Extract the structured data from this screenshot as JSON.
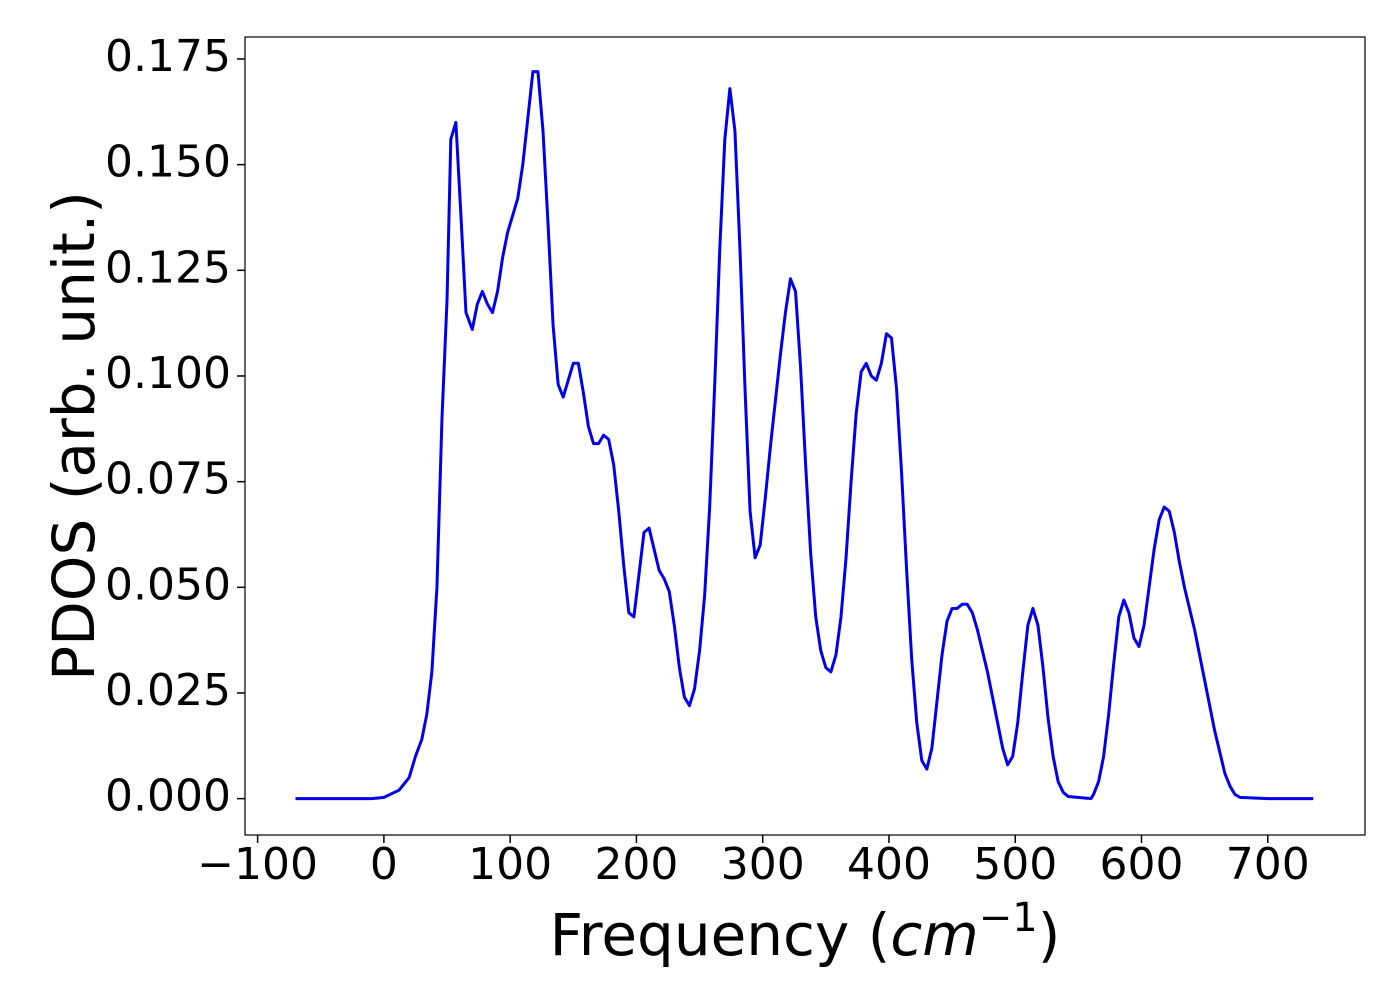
{
  "chart_data": {
    "type": "line",
    "xlabel": {
      "text": "Frequency (",
      "unit": "cm",
      "exponent": "−1",
      "close": ")"
    },
    "ylabel": "PDOS (arb. unit.)",
    "xlim": [
      -110,
      777
    ],
    "ylim": [
      -0.0086,
      0.1802
    ],
    "xticks": [
      {
        "value": -100,
        "label": "−100"
      },
      0,
      100,
      200,
      300,
      400,
      500,
      600,
      700
    ],
    "yticks": [
      {
        "value": 0,
        "label": "0.000"
      },
      0.025,
      {
        "value": 0.05,
        "label": "0.050"
      },
      0.075,
      {
        "value": 0.1,
        "label": "0.100"
      },
      0.125,
      {
        "value": 0.15,
        "label": "0.150"
      },
      0.175
    ],
    "grid": false,
    "x": [
      -70,
      -40,
      -10,
      0,
      12,
      20,
      25,
      30,
      34,
      38,
      42,
      46,
      50,
      53,
      57,
      61,
      65,
      70,
      74,
      78,
      82,
      86,
      90,
      94,
      98,
      102,
      106,
      110,
      114,
      118,
      122,
      126,
      130,
      134,
      138,
      142,
      146,
      150,
      154,
      158,
      162,
      166,
      170,
      174,
      178,
      182,
      186,
      190,
      194,
      198,
      202,
      206,
      210,
      214,
      218,
      222,
      226,
      230,
      234,
      238,
      242,
      246,
      250,
      254,
      258,
      262,
      266,
      270,
      274,
      278,
      282,
      286,
      290,
      294,
      298,
      302,
      306,
      310,
      314,
      318,
      322,
      326,
      330,
      334,
      338,
      342,
      346,
      350,
      354,
      358,
      362,
      366,
      370,
      374,
      378,
      382,
      386,
      390,
      394,
      398,
      402,
      406,
      410,
      414,
      418,
      422,
      426,
      430,
      434,
      438,
      442,
      446,
      450,
      454,
      458,
      462,
      466,
      470,
      474,
      478,
      482,
      486,
      490,
      494,
      498,
      502,
      506,
      510,
      514,
      518,
      522,
      526,
      530,
      534,
      538,
      542,
      560,
      562,
      566,
      570,
      574,
      578,
      582,
      586,
      590,
      594,
      598,
      602,
      606,
      610,
      614,
      618,
      622,
      626,
      630,
      634,
      638,
      642,
      646,
      650,
      654,
      658,
      662,
      666,
      670,
      674,
      678,
      700,
      736
    ],
    "series": [
      {
        "name": "PDOS",
        "color": "#0000ee",
        "values": [
          0,
          0,
          0,
          0.0003,
          0.002,
          0.005,
          0.01,
          0.014,
          0.02,
          0.03,
          0.05,
          0.09,
          0.118,
          0.156,
          0.16,
          0.138,
          0.115,
          0.111,
          0.117,
          0.12,
          0.117,
          0.115,
          0.12,
          0.128,
          0.134,
          0.138,
          0.142,
          0.15,
          0.161,
          0.172,
          0.172,
          0.158,
          0.136,
          0.112,
          0.098,
          0.095,
          0.099,
          0.103,
          0.103,
          0.096,
          0.088,
          0.084,
          0.084,
          0.086,
          0.085,
          0.079,
          0.068,
          0.055,
          0.044,
          0.043,
          0.053,
          0.063,
          0.064,
          0.059,
          0.054,
          0.052,
          0.049,
          0.041,
          0.031,
          0.024,
          0.022,
          0.026,
          0.035,
          0.048,
          0.069,
          0.098,
          0.13,
          0.156,
          0.168,
          0.158,
          0.13,
          0.097,
          0.068,
          0.057,
          0.06,
          0.071,
          0.083,
          0.094,
          0.105,
          0.115,
          0.123,
          0.12,
          0.102,
          0.079,
          0.058,
          0.043,
          0.035,
          0.031,
          0.03,
          0.034,
          0.043,
          0.057,
          0.075,
          0.091,
          0.101,
          0.103,
          0.1,
          0.099,
          0.103,
          0.11,
          0.109,
          0.097,
          0.077,
          0.054,
          0.033,
          0.018,
          0.009,
          0.007,
          0.012,
          0.023,
          0.034,
          0.042,
          0.045,
          0.045,
          0.046,
          0.046,
          0.044,
          0.04,
          0.035,
          0.03,
          0.024,
          0.018,
          0.012,
          0.008,
          0.01,
          0.018,
          0.03,
          0.041,
          0.045,
          0.041,
          0.031,
          0.019,
          0.01,
          0.004,
          0.0015,
          0.0005,
          0,
          0.001,
          0.004,
          0.01,
          0.02,
          0.032,
          0.043,
          0.047,
          0.044,
          0.038,
          0.036,
          0.041,
          0.05,
          0.059,
          0.066,
          0.069,
          0.068,
          0.063,
          0.056,
          0.05,
          0.045,
          0.04,
          0.034,
          0.028,
          0.022,
          0.016,
          0.011,
          0.006,
          0.003,
          0.001,
          0.0003,
          0,
          0
        ]
      }
    ]
  }
}
